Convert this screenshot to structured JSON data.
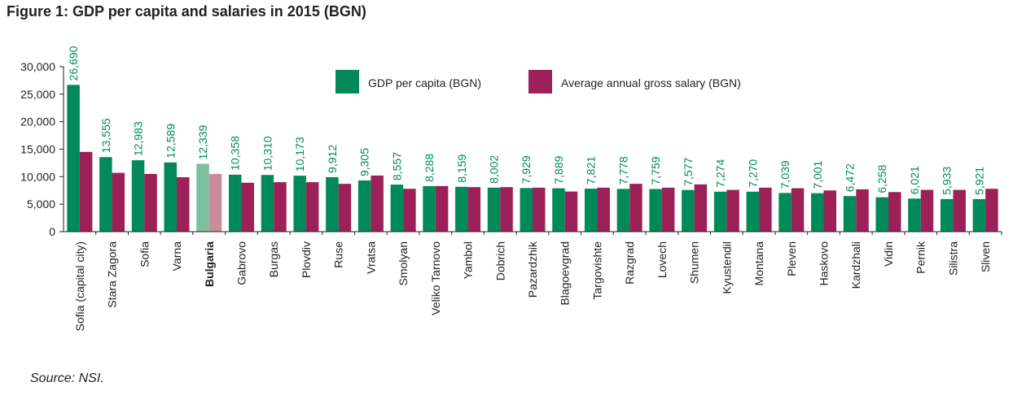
{
  "title": "Figure 1: GDP per capita and salaries in 2015 (BGN)",
  "source": "Source: NSI.",
  "chart_data": {
    "type": "bar",
    "title": "Figure 1: GDP per capita and salaries in 2015 (BGN)",
    "xlabel": "",
    "ylabel": "",
    "ylim": [
      0,
      30000
    ],
    "yticks": [
      0,
      5000,
      10000,
      15000,
      20000,
      25000,
      30000
    ],
    "ytick_labels": [
      "0",
      "5,000",
      "10,000",
      "15,000",
      "20,000",
      "25,000",
      "30,000"
    ],
    "grid": false,
    "legend_position": "top",
    "highlight_category": "Bulgaria",
    "categories": [
      "Sofia (capital city)",
      "Stara Zagora",
      "Sofia",
      "Varna",
      "Bulgaria",
      "Gabrovo",
      "Burgas",
      "Plovdiv",
      "Ruse",
      "Vratsa",
      "Smolyan",
      "Veliko Tarnovo",
      "Yambol",
      "Dobrich",
      "Pazardzhik",
      "Blagoevgrad",
      "Targovishte",
      "Razgrad",
      "Lovech",
      "Shumen",
      "Kyustendil",
      "Montana",
      "Pleven",
      "Haskovo",
      "Kardzhali",
      "Vidin",
      "Pernik",
      "Silistra",
      "Sliven"
    ],
    "series": [
      {
        "name": "GDP per capita (BGN)",
        "color": "#008a5a",
        "highlight_color": "#7dbf9f",
        "values": [
          26690,
          13555,
          12983,
          12589,
          12339,
          10358,
          10310,
          10173,
          9912,
          9305,
          8557,
          8288,
          8159,
          8002,
          7929,
          7889,
          7821,
          7778,
          7759,
          7577,
          7274,
          7270,
          7039,
          7001,
          6472,
          6258,
          6021,
          5933,
          5921
        ],
        "data_labels": [
          "26,690",
          "13,555",
          "12,983",
          "12,589",
          "12,339",
          "10,358",
          "10,310",
          "10,173",
          "9,912",
          "9,305",
          "8,557",
          "8,288",
          "8,159",
          "8,002",
          "7,929",
          "7,889",
          "7,821",
          "7,778",
          "7,759",
          "7,577",
          "7,274",
          "7,270",
          "7,039",
          "7,001",
          "6,472",
          "6,258",
          "6,021",
          "5,933",
          "5,921"
        ]
      },
      {
        "name": "Average annual gross salary (BGN)",
        "color": "#9b2158",
        "highlight_color": "#c98d9a",
        "values": [
          14500,
          10700,
          10500,
          9900,
          10500,
          8900,
          9000,
          9000,
          8700,
          10200,
          7800,
          8300,
          8100,
          8100,
          8000,
          7300,
          8000,
          8700,
          8000,
          8600,
          7600,
          8000,
          7900,
          7500,
          7700,
          7200,
          7600,
          7600,
          7800
        ]
      }
    ],
    "highlight_label_color": "#9b2158"
  }
}
